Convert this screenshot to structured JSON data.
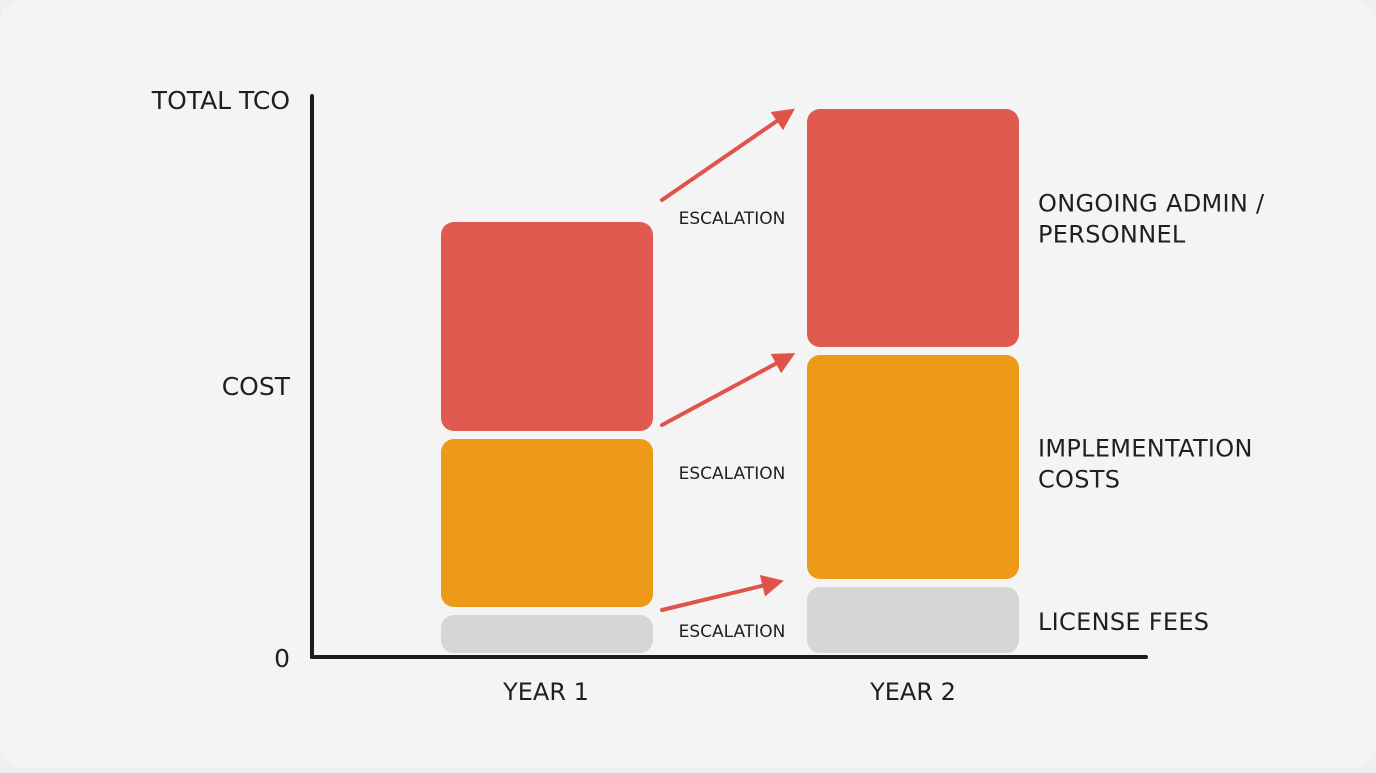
{
  "chart_data": {
    "type": "bar",
    "stacked": true,
    "categories": [
      "YEAR 1",
      "YEAR 2"
    ],
    "series": [
      {
        "name": "LICENSE FEES",
        "values": [
          38,
          66
        ],
        "color": "#d6d6d6"
      },
      {
        "name": "IMPLEMENTATION COSTS",
        "values": [
          176,
          232
        ],
        "color": "#ec9a17"
      },
      {
        "name": "ONGOING ADMIN / PERSONNEL",
        "values": [
          217,
          246
        ],
        "color": "#e05a50"
      }
    ],
    "ylabel_top": "TOTAL TCO",
    "ylabel_mid": "COST",
    "y_zero_label": "0",
    "annotation_label": "ESCALATION",
    "arrow_color": "#e0534a",
    "axis_color": "#1c1c1c",
    "grid": false
  }
}
